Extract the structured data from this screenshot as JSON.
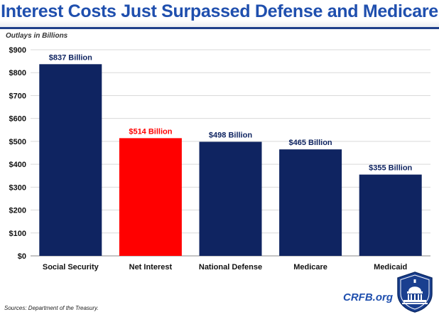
{
  "title": "Interest Costs Just Surpassed Defense and Medicare",
  "source_note": "Sources: Department of the Treasury.",
  "brand": "CRFB.org",
  "colors": {
    "title": "#1f4fae",
    "bar_default": "#0f2461",
    "bar_highlight": "#ff0000"
  },
  "chart_data": {
    "type": "bar",
    "title": "Interest Costs Just Surpassed Defense and Medicare",
    "ylabel": "Outlays in Billions",
    "xlabel": "",
    "categories": [
      "Social Security",
      "Net Interest",
      "National Defense",
      "Medicare",
      "Medicaid"
    ],
    "values": [
      837,
      514,
      498,
      465,
      355
    ],
    "data_labels": [
      "$837 Billion",
      "$514 Billion",
      "$498 Billion",
      "$465 Billion",
      "$355 Billion"
    ],
    "highlight_index": 1,
    "ylim": [
      0,
      900
    ],
    "yticks": [
      0,
      100,
      200,
      300,
      400,
      500,
      600,
      700,
      800,
      900
    ],
    "ytick_labels": [
      "$0",
      "$100",
      "$200",
      "$300",
      "$400",
      "$500",
      "$600",
      "$700",
      "$800",
      "$900"
    ],
    "grid": true,
    "legend": "none"
  }
}
